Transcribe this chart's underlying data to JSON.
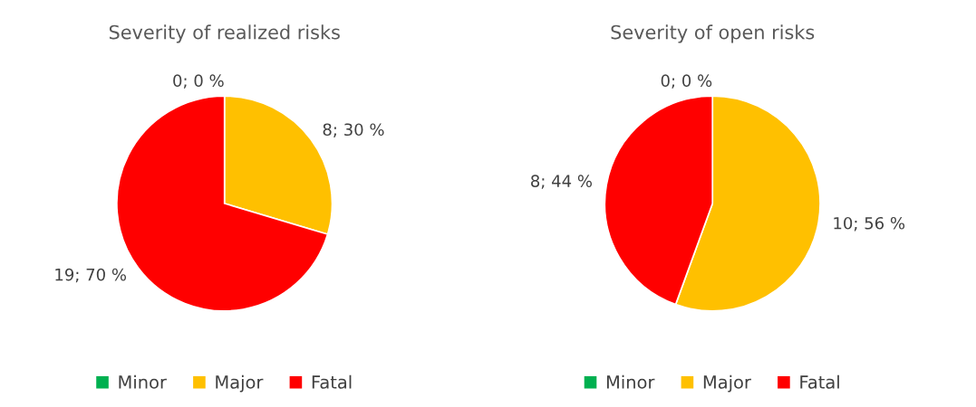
{
  "chart_data": [
    {
      "type": "pie",
      "title": "Severity of realized risks",
      "categories": [
        "Minor",
        "Major",
        "Fatal"
      ],
      "values": [
        0,
        8,
        19
      ],
      "colors": [
        "#00b050",
        "#ffc000",
        "#ff0000"
      ],
      "value_labels": [
        "0; 0 %",
        "8; 30 %",
        "19; 70 %"
      ],
      "legend": "bottom"
    },
    {
      "type": "pie",
      "title": "Severity of open risks",
      "categories": [
        "Minor",
        "Major",
        "Fatal"
      ],
      "values": [
        0,
        10,
        8
      ],
      "colors": [
        "#00b050",
        "#ffc000",
        "#ff0000"
      ],
      "value_labels": [
        "0; 0 %",
        "10; 56 %",
        "8; 44 %"
      ],
      "legend": "bottom"
    }
  ]
}
